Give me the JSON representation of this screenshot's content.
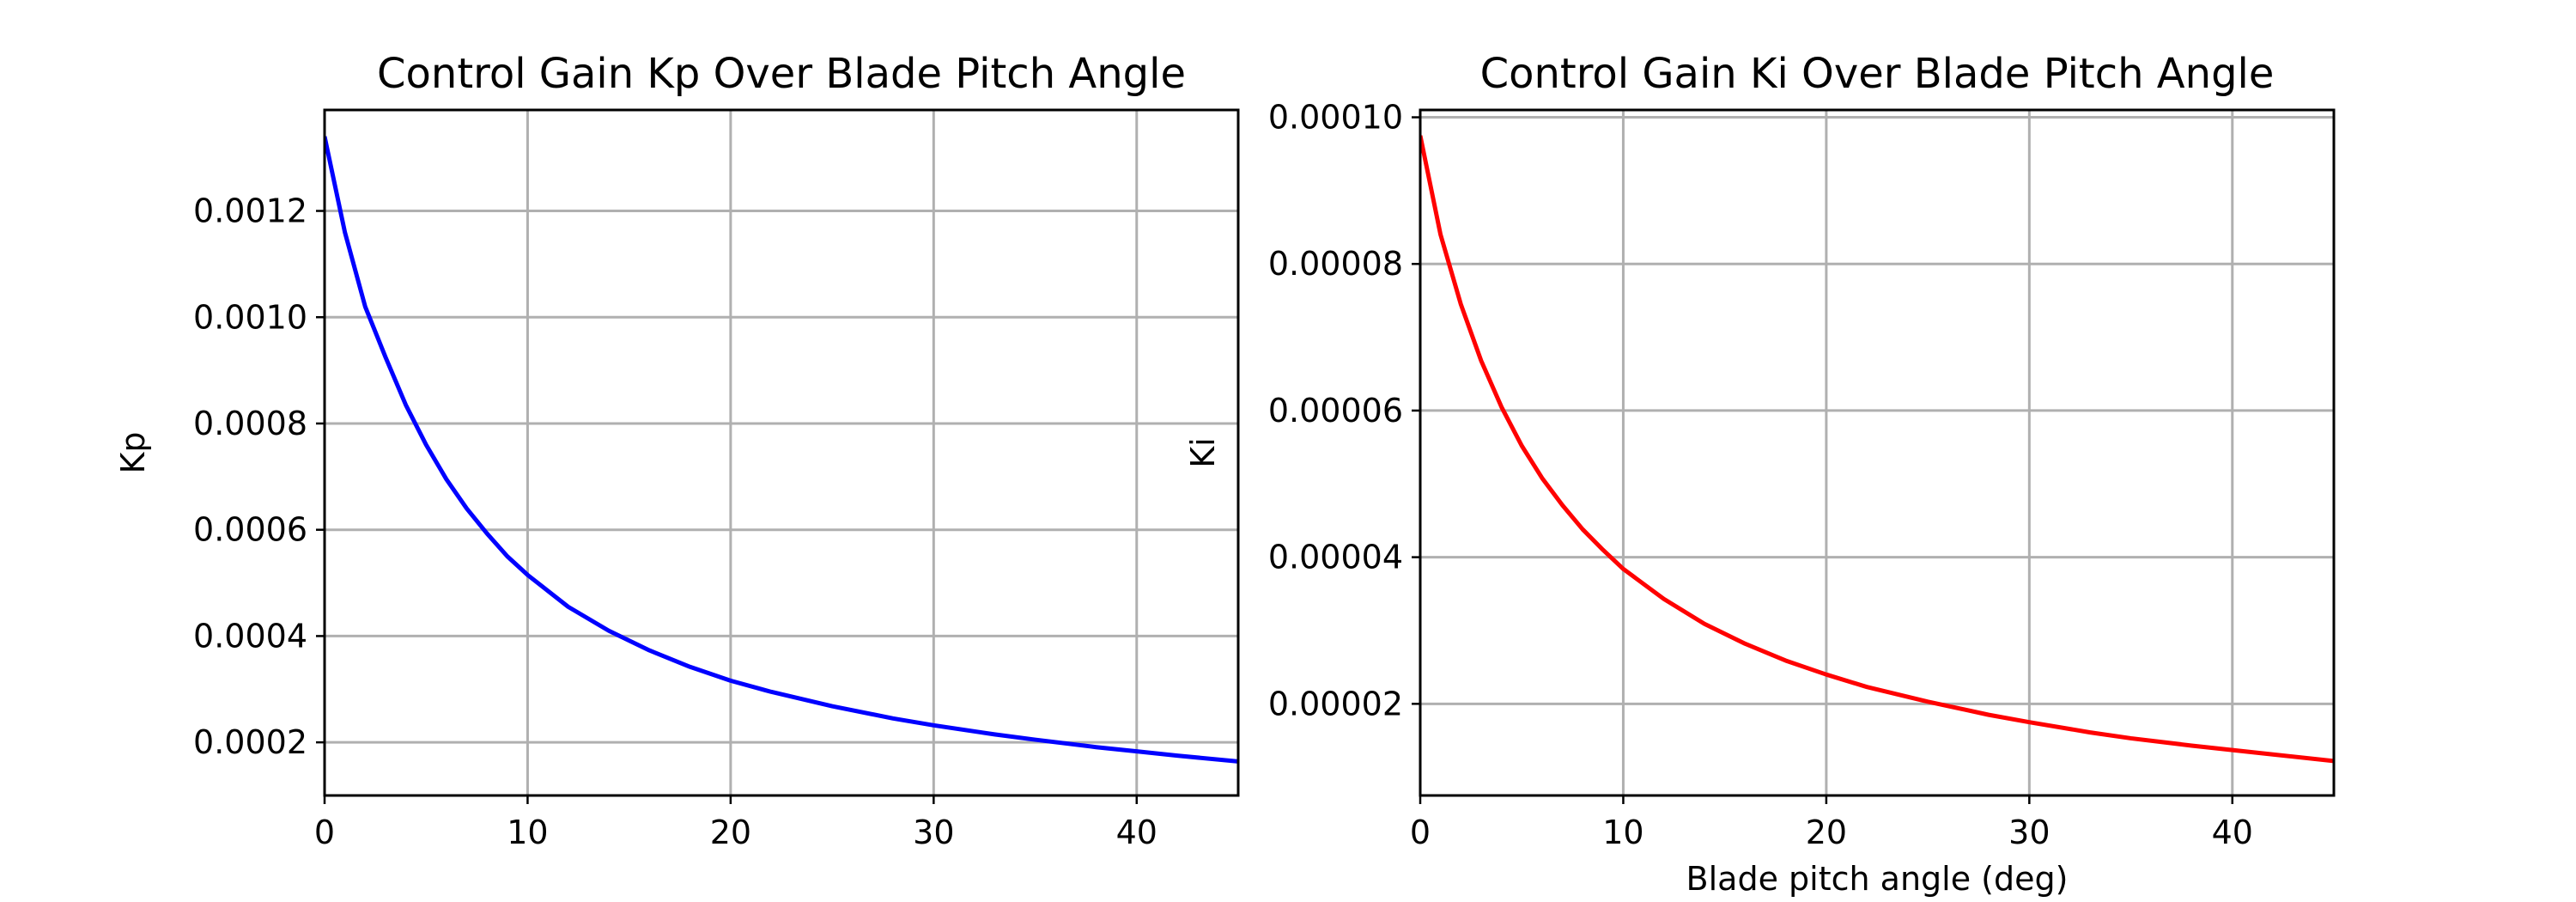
{
  "chart_data": [
    {
      "type": "line",
      "title": "Control Gain Kp Over Blade Pitch Angle",
      "xlabel": "",
      "ylabel": "Kp",
      "xlim": [
        0,
        45
      ],
      "ylim": [
        0.0001,
        0.00139
      ],
      "x_ticks": [
        0,
        10,
        20,
        30,
        40
      ],
      "x_tick_labels": [
        "0",
        "10",
        "20",
        "30",
        "40"
      ],
      "y_ticks": [
        0.0002,
        0.0004,
        0.0006,
        0.0008,
        0.001,
        0.0012
      ],
      "y_tick_labels": [
        "0.0002",
        "0.0004",
        "0.0006",
        "0.0008",
        "0.0010",
        "0.0012"
      ],
      "grid": true,
      "series": [
        {
          "color": "#0000ff",
          "x": [
            0,
            1,
            2,
            3,
            4,
            5,
            6,
            7,
            8,
            9,
            10,
            12,
            14,
            16,
            18,
            20,
            22,
            25,
            28,
            30,
            33,
            35,
            38,
            40,
            42,
            45
          ],
          "y": [
            0.00134,
            0.00116,
            0.00102,
            0.000925,
            0.000835,
            0.00076,
            0.000695,
            0.00064,
            0.000593,
            0.00055,
            0.000515,
            0.000455,
            0.00041,
            0.000373,
            0.000342,
            0.000316,
            0.000295,
            0.000268,
            0.000245,
            0.000232,
            0.000215,
            0.000205,
            0.000191,
            0.000183,
            0.000175,
            0.000164
          ]
        }
      ]
    },
    {
      "type": "line",
      "title": "Control Gain Ki Over Blade Pitch Angle",
      "xlabel": "Blade pitch angle (deg)",
      "ylabel": "Ki",
      "xlim": [
        0,
        45
      ],
      "ylim": [
        7.5e-06,
        0.000101
      ],
      "x_ticks": [
        0,
        10,
        20,
        30,
        40
      ],
      "x_tick_labels": [
        "0",
        "10",
        "20",
        "30",
        "40"
      ],
      "y_ticks": [
        2e-05,
        4e-05,
        6e-05,
        8e-05,
        0.0001
      ],
      "y_tick_labels": [
        "0.00002",
        "0.00004",
        "0.00006",
        "0.00008",
        "0.00010"
      ],
      "grid": true,
      "series": [
        {
          "color": "#ff0000",
          "x": [
            0,
            1,
            2,
            3,
            4,
            5,
            6,
            7,
            8,
            9,
            10,
            12,
            14,
            16,
            18,
            20,
            22,
            25,
            28,
            30,
            33,
            35,
            38,
            40,
            42,
            45
          ],
          "y": [
            9.75e-05,
            8.4e-05,
            7.45e-05,
            6.68e-05,
            6.05e-05,
            5.52e-05,
            5.08e-05,
            4.71e-05,
            4.38e-05,
            4.1e-05,
            3.84e-05,
            3.43e-05,
            3.09e-05,
            2.82e-05,
            2.59e-05,
            2.4e-05,
            2.23e-05,
            2.03e-05,
            1.85e-05,
            1.75e-05,
            1.61e-05,
            1.53e-05,
            1.43e-05,
            1.37e-05,
            1.31e-05,
            1.22e-05
          ]
        }
      ]
    }
  ]
}
